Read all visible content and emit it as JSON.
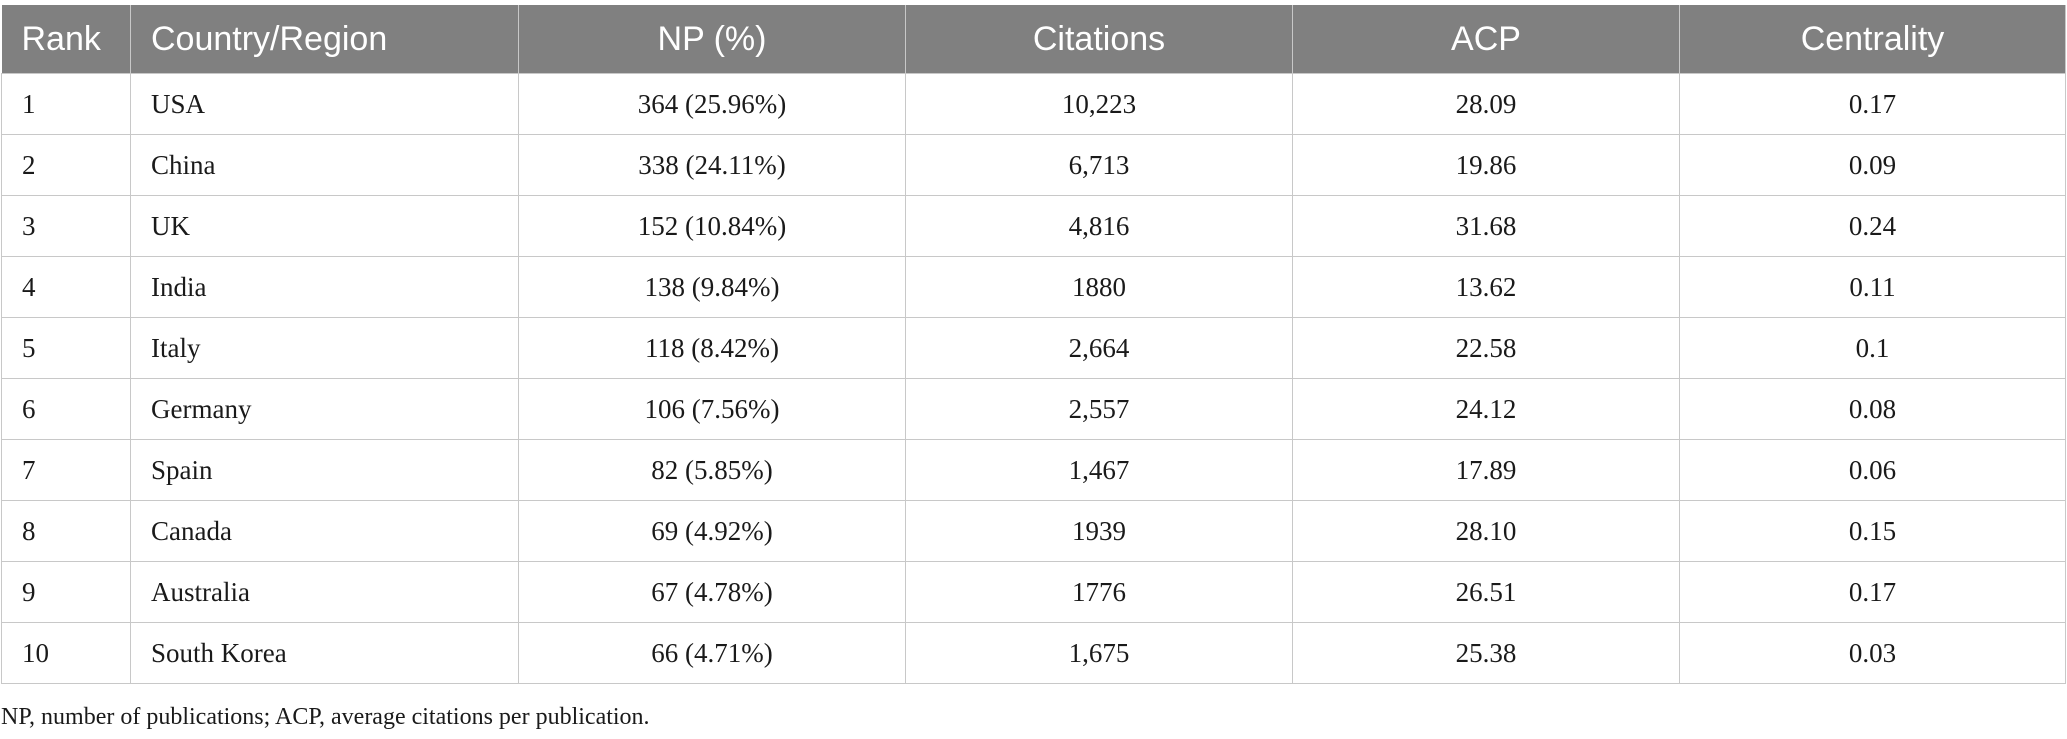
{
  "table": {
    "headers": [
      "Rank",
      "Country/Region",
      "NP (%)",
      "Citations",
      "ACP",
      "Centrality"
    ],
    "rows": [
      [
        "1",
        "USA",
        "364 (25.96%)",
        "10,223",
        "28.09",
        "0.17"
      ],
      [
        "2",
        "China",
        "338 (24.11%)",
        "6,713",
        "19.86",
        "0.09"
      ],
      [
        "3",
        "UK",
        "152 (10.84%)",
        "4,816",
        "31.68",
        "0.24"
      ],
      [
        "4",
        "India",
        "138 (9.84%)",
        "1880",
        "13.62",
        "0.11"
      ],
      [
        "5",
        "Italy",
        "118 (8.42%)",
        "2,664",
        "22.58",
        "0.1"
      ],
      [
        "6",
        "Germany",
        "106 (7.56%)",
        "2,557",
        "24.12",
        "0.08"
      ],
      [
        "7",
        "Spain",
        "82 (5.85%)",
        "1,467",
        "17.89",
        "0.06"
      ],
      [
        "8",
        "Canada",
        "69 (4.92%)",
        "1939",
        "28.10",
        "0.15"
      ],
      [
        "9",
        "Australia",
        "67 (4.78%)",
        "1776",
        "26.51",
        "0.17"
      ],
      [
        "10",
        "South Korea",
        "66 (4.71%)",
        "1,675",
        "25.38",
        "0.03"
      ]
    ]
  },
  "footnote": "NP, number of publications; ACP, average citations per publication.",
  "colors": {
    "header_bg": "#808080",
    "header_text": "#ffffff",
    "border": "#c8c8c8",
    "body_text": "#1a1a1a"
  }
}
